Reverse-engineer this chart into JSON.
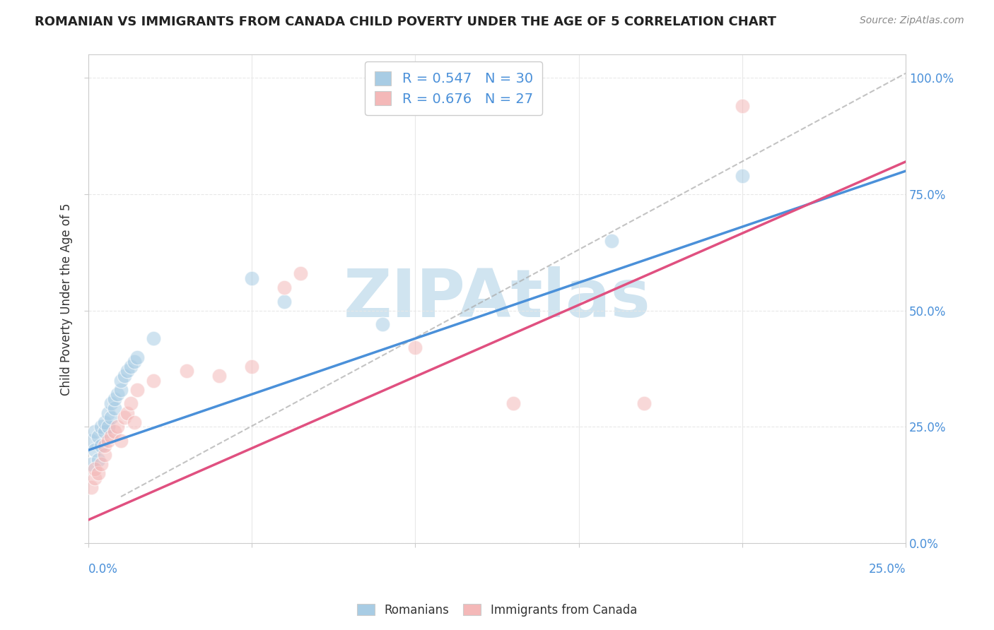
{
  "title": "ROMANIAN VS IMMIGRANTS FROM CANADA CHILD POVERTY UNDER THE AGE OF 5 CORRELATION CHART",
  "source": "Source: ZipAtlas.com",
  "ylabel": "Child Poverty Under the Age of 5",
  "blue_R": 0.547,
  "blue_N": 30,
  "pink_R": 0.676,
  "pink_N": 27,
  "blue_color": "#a8cce4",
  "pink_color": "#f4b8b8",
  "blue_line_color": "#4a90d9",
  "pink_line_color": "#e05080",
  "watermark": "ZIPAtlas",
  "watermark_color": "#d0e4f0",
  "blue_scatter_x": [
    0.001,
    0.001,
    0.002,
    0.002,
    0.003,
    0.003,
    0.004,
    0.004,
    0.005,
    0.005,
    0.006,
    0.006,
    0.007,
    0.007,
    0.008,
    0.008,
    0.009,
    0.01,
    0.01,
    0.011,
    0.012,
    0.013,
    0.014,
    0.015,
    0.02,
    0.05,
    0.06,
    0.09,
    0.16,
    0.2
  ],
  "blue_scatter_y": [
    0.17,
    0.22,
    0.2,
    0.24,
    0.18,
    0.23,
    0.21,
    0.25,
    0.24,
    0.26,
    0.25,
    0.28,
    0.27,
    0.3,
    0.29,
    0.31,
    0.32,
    0.33,
    0.35,
    0.36,
    0.37,
    0.38,
    0.39,
    0.4,
    0.44,
    0.57,
    0.52,
    0.47,
    0.65,
    0.79
  ],
  "pink_scatter_x": [
    0.001,
    0.002,
    0.002,
    0.003,
    0.004,
    0.005,
    0.005,
    0.006,
    0.007,
    0.008,
    0.009,
    0.01,
    0.011,
    0.012,
    0.013,
    0.014,
    0.015,
    0.02,
    0.03,
    0.04,
    0.05,
    0.06,
    0.065,
    0.1,
    0.13,
    0.17,
    0.2
  ],
  "pink_scatter_y": [
    0.12,
    0.14,
    0.16,
    0.15,
    0.17,
    0.19,
    0.21,
    0.22,
    0.23,
    0.24,
    0.25,
    0.22,
    0.27,
    0.28,
    0.3,
    0.26,
    0.33,
    0.35,
    0.37,
    0.36,
    0.38,
    0.55,
    0.58,
    0.42,
    0.3,
    0.3,
    0.94
  ],
  "blue_line_x0": 0.0,
  "blue_line_y0": 0.2,
  "blue_line_x1": 0.25,
  "blue_line_y1": 0.8,
  "pink_line_x0": 0.0,
  "pink_line_y0": 0.05,
  "pink_line_x1": 0.25,
  "pink_line_y1": 0.82,
  "dash_line_x0": 0.01,
  "dash_line_y0": 0.1,
  "dash_line_x1": 0.25,
  "dash_line_y1": 1.01,
  "xlim": [
    0.0,
    0.25
  ],
  "ylim": [
    0.0,
    1.05
  ],
  "background_color": "#ffffff",
  "plot_bg_color": "#ffffff",
  "grid_color": "#e8e8e8"
}
